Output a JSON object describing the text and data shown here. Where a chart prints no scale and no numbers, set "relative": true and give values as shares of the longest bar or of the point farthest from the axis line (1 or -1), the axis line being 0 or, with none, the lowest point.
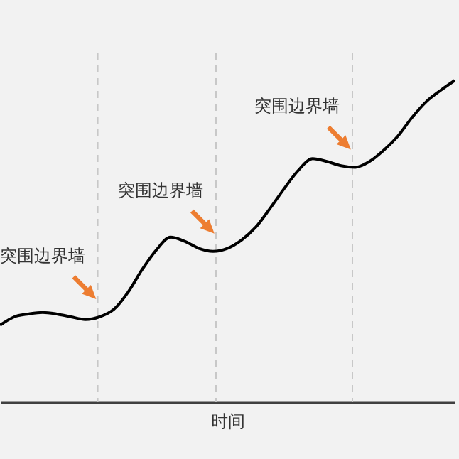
{
  "chart_data": {
    "type": "line",
    "relative": true,
    "xlabel": "时间",
    "categories": [
      null,
      null,
      null,
      null,
      null,
      null,
      null,
      null,
      null,
      null,
      null,
      null,
      null,
      null,
      null,
      null,
      null,
      null,
      null,
      null,
      null,
      null,
      null,
      null,
      null,
      null,
      null,
      null,
      null,
      null,
      null,
      null,
      null
    ],
    "series": [
      {
        "color": "#000000",
        "values": [
          0.239,
          0.265,
          0.274,
          0.279,
          0.274,
          0.265,
          0.257,
          0.265,
          0.288,
          0.341,
          0.412,
          0.473,
          0.513,
          0.5,
          0.478,
          0.469,
          0.478,
          0.504,
          0.544,
          0.602,
          0.664,
          0.721,
          0.757,
          0.748,
          0.735,
          0.73,
          0.748,
          0.783,
          0.827,
          0.885,
          0.934,
          0.969,
          1.0
        ]
      }
    ],
    "annotations": [
      "突围边界墙",
      "突围边界墙",
      "突围边界墙"
    ],
    "grid": false,
    "marker": "none",
    "line_style": "solid"
  }
}
